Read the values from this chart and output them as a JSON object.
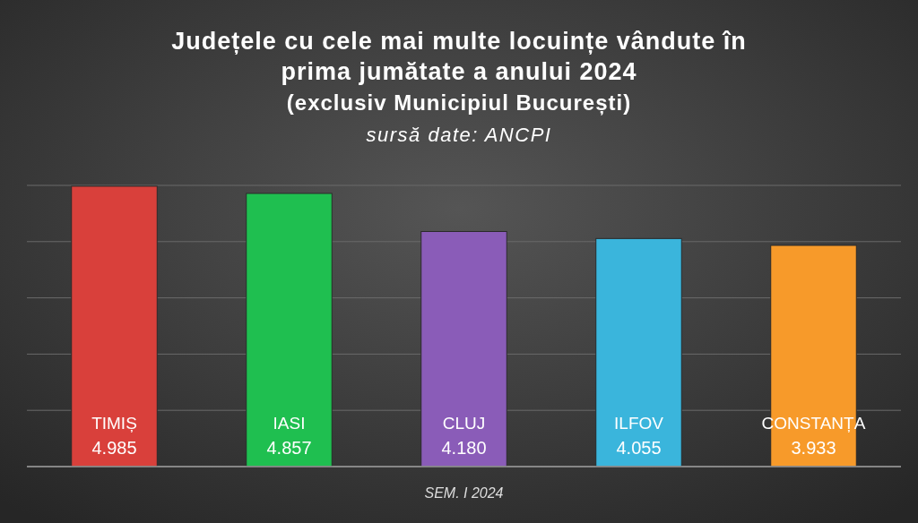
{
  "chart_data": {
    "type": "bar",
    "title": "Județele cu cele mai multe locuințe vândute în\nprima jumătate a anului 2024\n(exclusiv Municipiul București)",
    "subtitle": "sursă date: ANCPI",
    "xlabel": "SEM. I 2024",
    "categories": [
      "TIMIȘ",
      "IASI",
      "CLUJ",
      "ILFOV",
      "CONSTANȚA"
    ],
    "values": [
      4985,
      4857,
      4180,
      4055,
      3933
    ],
    "colors": [
      "#d9403b",
      "#1fbf50",
      "#8a5cb8",
      "#3ab5dc",
      "#f79a2a"
    ],
    "value_labels": [
      "4.985",
      "4.857",
      "4.180",
      "4.055",
      "3.933"
    ],
    "ylim": [
      0,
      5000
    ],
    "yticks": [
      {
        "value": 0,
        "label": null
      },
      {
        "value": 1000,
        "label": null
      },
      {
        "value": 2000,
        "label": null
      },
      {
        "value": 3000,
        "label": null
      },
      {
        "value": 4000,
        "label": null
      },
      {
        "value": 5000,
        "label": null
      }
    ],
    "grid": "y",
    "tick_labels": "x"
  }
}
